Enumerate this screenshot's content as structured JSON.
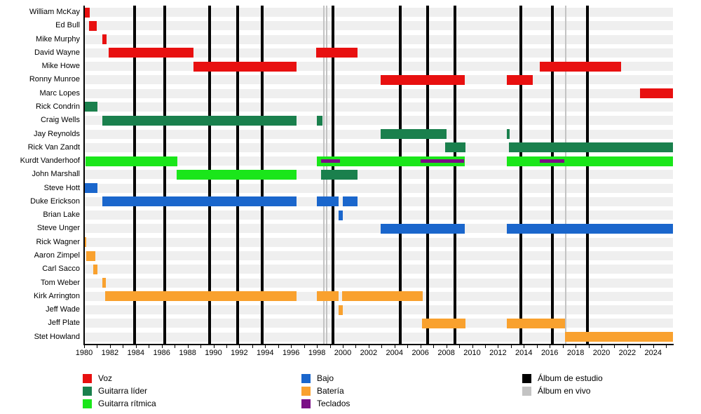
{
  "chart_data": {
    "type": "bar",
    "variant": "band-member-timeline",
    "title": "",
    "x_axis": {
      "start_year": 1980,
      "end_year": 2025.55,
      "tick_interval_years": 1,
      "year_labels": [
        1980,
        1982,
        1984,
        1986,
        1988,
        1990,
        1992,
        1994,
        1996,
        1998,
        2000,
        2002,
        2004,
        2006,
        2008,
        2010,
        2012,
        2014,
        2016,
        2018,
        2020,
        2022,
        2024
      ]
    },
    "colors": {
      "voz": "#e81010",
      "lider": "#1a804d",
      "ritmica": "#1ae61a",
      "bajo": "#1a66cc",
      "bateria": "#f9a12e",
      "teclados": "#7b0e86",
      "studio_album": "#000000",
      "live_album": "#c3c3c3",
      "row_band": "#efefef"
    },
    "members": [
      {
        "name": "William McKay",
        "segments": [
          {
            "role": "voz",
            "start": 1980.0,
            "end": 1980.43
          }
        ]
      },
      {
        "name": "Ed Bull",
        "segments": [
          {
            "role": "voz",
            "start": 1980.38,
            "end": 1980.98
          }
        ]
      },
      {
        "name": "Mike Murphy",
        "segments": [
          {
            "role": "voz",
            "start": 1981.41,
            "end": 1981.73
          }
        ]
      },
      {
        "name": "David Wayne",
        "segments": [
          {
            "role": "voz",
            "start": 1981.9,
            "end": 1988.46
          },
          {
            "role": "voz",
            "start": 1997.94,
            "end": 2001.14
          }
        ]
      },
      {
        "name": "Mike Howe",
        "segments": [
          {
            "role": "voz",
            "start": 1988.46,
            "end": 1996.42
          },
          {
            "role": "voz",
            "start": 2015.23,
            "end": 2021.52
          }
        ]
      },
      {
        "name": "Ronny Munroe",
        "segments": [
          {
            "role": "voz",
            "start": 2002.93,
            "end": 2009.43
          },
          {
            "role": "voz",
            "start": 2012.68,
            "end": 2014.69
          }
        ]
      },
      {
        "name": "Marc Lopes",
        "segments": [
          {
            "role": "voz",
            "start": 2022.98,
            "end": 2025.53
          }
        ]
      },
      {
        "name": "Rick Condrin",
        "segments": [
          {
            "role": "lider",
            "start": 1980.05,
            "end": 1981.03
          }
        ]
      },
      {
        "name": "Craig Wells",
        "segments": [
          {
            "role": "lider",
            "start": 1981.41,
            "end": 1996.42
          },
          {
            "role": "lider",
            "start": 1998.0,
            "end": 1998.43
          }
        ]
      },
      {
        "name": "Jay Reynolds",
        "segments": [
          {
            "role": "lider",
            "start": 2002.93,
            "end": 2008.02
          },
          {
            "role": "lider",
            "start": 2012.68,
            "end": 2012.9
          }
        ]
      },
      {
        "name": "Rick Van Zandt",
        "segments": [
          {
            "role": "lider",
            "start": 2007.92,
            "end": 2009.49
          },
          {
            "role": "lider",
            "start": 2012.85,
            "end": 2025.53
          }
        ]
      },
      {
        "name": "Kurdt Vanderhoof",
        "segments": [
          {
            "role": "ritmica",
            "start": 1980.11,
            "end": 1987.21
          },
          {
            "role": "ritmica",
            "start": 1998.0,
            "end": 2009.43
          },
          {
            "role": "ritmica",
            "start": 2012.68,
            "end": 2025.53
          },
          {
            "role": "teclados",
            "start": 1998.32,
            "end": 1999.78,
            "overlay": true
          },
          {
            "role": "teclados",
            "start": 2006.02,
            "end": 2009.38,
            "overlay": true
          },
          {
            "role": "teclados",
            "start": 2015.23,
            "end": 2017.13,
            "overlay": true
          }
        ]
      },
      {
        "name": "John Marshall",
        "segments": [
          {
            "role": "ritmica",
            "start": 1987.16,
            "end": 1996.42
          },
          {
            "role": "lider",
            "start": 1998.32,
            "end": 2001.14
          }
        ]
      },
      {
        "name": "Steve Hott",
        "segments": [
          {
            "role": "bajo",
            "start": 1980.05,
            "end": 1981.03
          }
        ]
      },
      {
        "name": "Duke Erickson",
        "segments": [
          {
            "role": "bajo",
            "start": 1981.41,
            "end": 1996.42
          },
          {
            "role": "bajo",
            "start": 1998.0,
            "end": 1999.68
          },
          {
            "role": "bajo",
            "start": 2000.0,
            "end": 2001.14
          }
        ]
      },
      {
        "name": "Brian Lake",
        "segments": [
          {
            "role": "bajo",
            "start": 1999.68,
            "end": 2000.0
          }
        ]
      },
      {
        "name": "Steve Unger",
        "segments": [
          {
            "role": "bajo",
            "start": 2002.93,
            "end": 2009.43
          },
          {
            "role": "bajo",
            "start": 2012.68,
            "end": 2025.53
          }
        ]
      },
      {
        "name": "Rick Wagner",
        "segments": [
          {
            "role": "bateria",
            "start": 1980.0,
            "end": 1980.16
          }
        ]
      },
      {
        "name": "Aaron Zimpel",
        "segments": [
          {
            "role": "bateria",
            "start": 1980.16,
            "end": 1980.87
          }
        ]
      },
      {
        "name": "Carl Sacco",
        "segments": [
          {
            "role": "bateria",
            "start": 1980.7,
            "end": 1981.03
          }
        ]
      },
      {
        "name": "Tom Weber",
        "segments": [
          {
            "role": "bateria",
            "start": 1981.41,
            "end": 1981.68
          }
        ]
      },
      {
        "name": "Kirk Arrington",
        "segments": [
          {
            "role": "bateria",
            "start": 1981.63,
            "end": 1996.42
          },
          {
            "role": "bateria",
            "start": 1998.0,
            "end": 1999.68
          },
          {
            "role": "bateria",
            "start": 1999.95,
            "end": 2006.18
          }
        ]
      },
      {
        "name": "Jeff Wade",
        "segments": [
          {
            "role": "bateria",
            "start": 1999.68,
            "end": 2000.0
          }
        ]
      },
      {
        "name": "Jeff Plate",
        "segments": [
          {
            "role": "bateria",
            "start": 2006.13,
            "end": 2009.49
          },
          {
            "role": "bateria",
            "start": 2012.68,
            "end": 2017.18
          }
        ]
      },
      {
        "name": "Stet Howland",
        "segments": [
          {
            "role": "bateria",
            "start": 2017.18,
            "end": 2025.53
          }
        ]
      }
    ],
    "studio_album_years": [
      1983.9,
      1986.23,
      1989.7,
      1991.87,
      1993.77,
      1999.24,
      2004.45,
      2006.56,
      2008.67,
      2013.77,
      2016.21,
      2018.92
    ],
    "live_album_years": [
      1998.51,
      1998.73,
      2017.24
    ],
    "legend": {
      "columns": [
        [
          {
            "label": "Voz",
            "color_key": "voz"
          },
          {
            "label": "Guitarra líder",
            "color_key": "lider"
          },
          {
            "label": "Guitarra rítmica",
            "color_key": "ritmica"
          }
        ],
        [
          {
            "label": "Bajo",
            "color_key": "bajo"
          },
          {
            "label": "Batería",
            "color_key": "bateria"
          },
          {
            "label": "Teclados",
            "color_key": "teclados"
          }
        ],
        [
          {
            "label": "Álbum de estudio",
            "color_key": "studio_album"
          },
          {
            "label": "Álbum en vivo",
            "color_key": "live_album"
          }
        ]
      ]
    }
  }
}
